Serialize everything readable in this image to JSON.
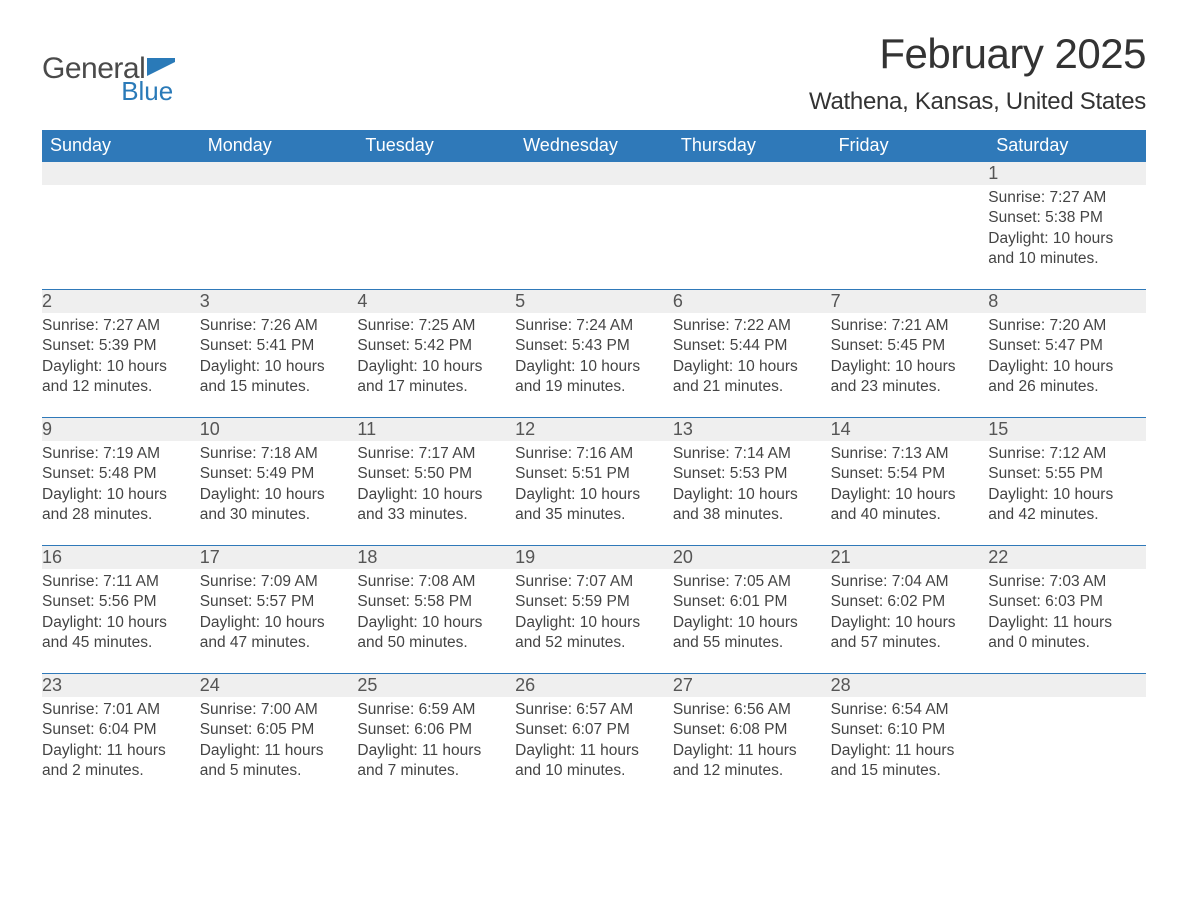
{
  "brand": {
    "general": "General",
    "blue": "Blue",
    "flag_color": "#2a7ab8"
  },
  "title": "February 2025",
  "location": "Wathena, Kansas, United States",
  "colors": {
    "header_bg": "#2f79b9",
    "header_text": "#ffffff",
    "strip_bg": "#efefef",
    "rule": "#2f79b9",
    "body_text": "#444444",
    "title_text": "#333333"
  },
  "dows": [
    "Sunday",
    "Monday",
    "Tuesday",
    "Wednesday",
    "Thursday",
    "Friday",
    "Saturday"
  ],
  "weeks": [
    [
      {
        "n": "",
        "sunrise": "",
        "sunset": "",
        "daylight": ""
      },
      {
        "n": "",
        "sunrise": "",
        "sunset": "",
        "daylight": ""
      },
      {
        "n": "",
        "sunrise": "",
        "sunset": "",
        "daylight": ""
      },
      {
        "n": "",
        "sunrise": "",
        "sunset": "",
        "daylight": ""
      },
      {
        "n": "",
        "sunrise": "",
        "sunset": "",
        "daylight": ""
      },
      {
        "n": "",
        "sunrise": "",
        "sunset": "",
        "daylight": ""
      },
      {
        "n": "1",
        "sunrise": "Sunrise: 7:27 AM",
        "sunset": "Sunset: 5:38 PM",
        "daylight": "Daylight: 10 hours and 10 minutes."
      }
    ],
    [
      {
        "n": "2",
        "sunrise": "Sunrise: 7:27 AM",
        "sunset": "Sunset: 5:39 PM",
        "daylight": "Daylight: 10 hours and 12 minutes."
      },
      {
        "n": "3",
        "sunrise": "Sunrise: 7:26 AM",
        "sunset": "Sunset: 5:41 PM",
        "daylight": "Daylight: 10 hours and 15 minutes."
      },
      {
        "n": "4",
        "sunrise": "Sunrise: 7:25 AM",
        "sunset": "Sunset: 5:42 PM",
        "daylight": "Daylight: 10 hours and 17 minutes."
      },
      {
        "n": "5",
        "sunrise": "Sunrise: 7:24 AM",
        "sunset": "Sunset: 5:43 PM",
        "daylight": "Daylight: 10 hours and 19 minutes."
      },
      {
        "n": "6",
        "sunrise": "Sunrise: 7:22 AM",
        "sunset": "Sunset: 5:44 PM",
        "daylight": "Daylight: 10 hours and 21 minutes."
      },
      {
        "n": "7",
        "sunrise": "Sunrise: 7:21 AM",
        "sunset": "Sunset: 5:45 PM",
        "daylight": "Daylight: 10 hours and 23 minutes."
      },
      {
        "n": "8",
        "sunrise": "Sunrise: 7:20 AM",
        "sunset": "Sunset: 5:47 PM",
        "daylight": "Daylight: 10 hours and 26 minutes."
      }
    ],
    [
      {
        "n": "9",
        "sunrise": "Sunrise: 7:19 AM",
        "sunset": "Sunset: 5:48 PM",
        "daylight": "Daylight: 10 hours and 28 minutes."
      },
      {
        "n": "10",
        "sunrise": "Sunrise: 7:18 AM",
        "sunset": "Sunset: 5:49 PM",
        "daylight": "Daylight: 10 hours and 30 minutes."
      },
      {
        "n": "11",
        "sunrise": "Sunrise: 7:17 AM",
        "sunset": "Sunset: 5:50 PM",
        "daylight": "Daylight: 10 hours and 33 minutes."
      },
      {
        "n": "12",
        "sunrise": "Sunrise: 7:16 AM",
        "sunset": "Sunset: 5:51 PM",
        "daylight": "Daylight: 10 hours and 35 minutes."
      },
      {
        "n": "13",
        "sunrise": "Sunrise: 7:14 AM",
        "sunset": "Sunset: 5:53 PM",
        "daylight": "Daylight: 10 hours and 38 minutes."
      },
      {
        "n": "14",
        "sunrise": "Sunrise: 7:13 AM",
        "sunset": "Sunset: 5:54 PM",
        "daylight": "Daylight: 10 hours and 40 minutes."
      },
      {
        "n": "15",
        "sunrise": "Sunrise: 7:12 AM",
        "sunset": "Sunset: 5:55 PM",
        "daylight": "Daylight: 10 hours and 42 minutes."
      }
    ],
    [
      {
        "n": "16",
        "sunrise": "Sunrise: 7:11 AM",
        "sunset": "Sunset: 5:56 PM",
        "daylight": "Daylight: 10 hours and 45 minutes."
      },
      {
        "n": "17",
        "sunrise": "Sunrise: 7:09 AM",
        "sunset": "Sunset: 5:57 PM",
        "daylight": "Daylight: 10 hours and 47 minutes."
      },
      {
        "n": "18",
        "sunrise": "Sunrise: 7:08 AM",
        "sunset": "Sunset: 5:58 PM",
        "daylight": "Daylight: 10 hours and 50 minutes."
      },
      {
        "n": "19",
        "sunrise": "Sunrise: 7:07 AM",
        "sunset": "Sunset: 5:59 PM",
        "daylight": "Daylight: 10 hours and 52 minutes."
      },
      {
        "n": "20",
        "sunrise": "Sunrise: 7:05 AM",
        "sunset": "Sunset: 6:01 PM",
        "daylight": "Daylight: 10 hours and 55 minutes."
      },
      {
        "n": "21",
        "sunrise": "Sunrise: 7:04 AM",
        "sunset": "Sunset: 6:02 PM",
        "daylight": "Daylight: 10 hours and 57 minutes."
      },
      {
        "n": "22",
        "sunrise": "Sunrise: 7:03 AM",
        "sunset": "Sunset: 6:03 PM",
        "daylight": "Daylight: 11 hours and 0 minutes."
      }
    ],
    [
      {
        "n": "23",
        "sunrise": "Sunrise: 7:01 AM",
        "sunset": "Sunset: 6:04 PM",
        "daylight": "Daylight: 11 hours and 2 minutes."
      },
      {
        "n": "24",
        "sunrise": "Sunrise: 7:00 AM",
        "sunset": "Sunset: 6:05 PM",
        "daylight": "Daylight: 11 hours and 5 minutes."
      },
      {
        "n": "25",
        "sunrise": "Sunrise: 6:59 AM",
        "sunset": "Sunset: 6:06 PM",
        "daylight": "Daylight: 11 hours and 7 minutes."
      },
      {
        "n": "26",
        "sunrise": "Sunrise: 6:57 AM",
        "sunset": "Sunset: 6:07 PM",
        "daylight": "Daylight: 11 hours and 10 minutes."
      },
      {
        "n": "27",
        "sunrise": "Sunrise: 6:56 AM",
        "sunset": "Sunset: 6:08 PM",
        "daylight": "Daylight: 11 hours and 12 minutes."
      },
      {
        "n": "28",
        "sunrise": "Sunrise: 6:54 AM",
        "sunset": "Sunset: 6:10 PM",
        "daylight": "Daylight: 11 hours and 15 minutes."
      },
      {
        "n": "",
        "sunrise": "",
        "sunset": "",
        "daylight": ""
      }
    ]
  ]
}
